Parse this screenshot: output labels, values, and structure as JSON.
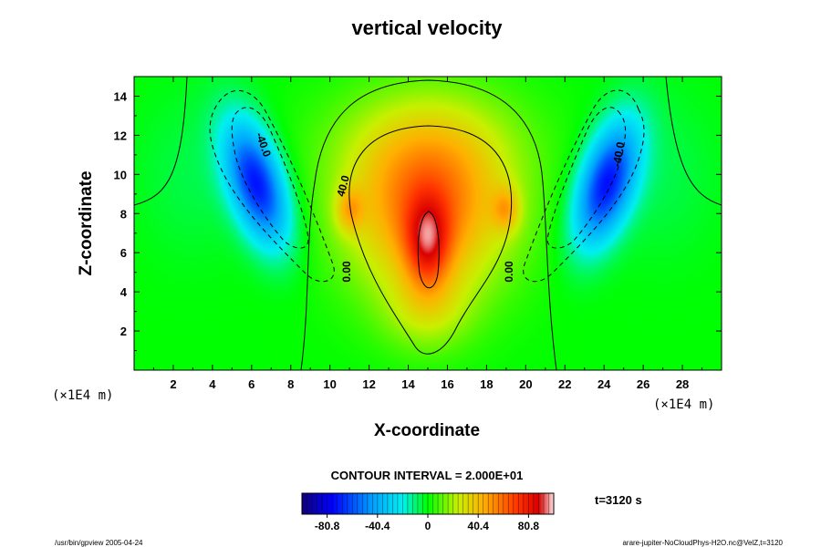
{
  "chart_data": {
    "type": "heatmap",
    "title": "vertical velocity",
    "xlabel": "X-coordinate",
    "ylabel": "Z-coordinate",
    "x_unit_note": "(×1E4 m)",
    "y_unit_note": "(×1E4 m)",
    "xlim": [
      0,
      30
    ],
    "ylim": [
      0,
      15
    ],
    "x_ticks": [
      "2",
      "4",
      "6",
      "8",
      "10",
      "12",
      "14",
      "16",
      "18",
      "20",
      "22",
      "24",
      "26",
      "28"
    ],
    "y_ticks": [
      "2",
      "4",
      "6",
      "8",
      "10",
      "12",
      "14"
    ],
    "contour_interval_text": "CONTOUR INTERVAL = 2.000E+01",
    "contour_labels": [
      "-40.0",
      "-40.0",
      "40.0",
      "0.00",
      "0.00"
    ],
    "colorbar": {
      "range": [
        -101,
        101
      ],
      "tick_labels": [
        "-80.8",
        "-40.4",
        "0",
        "40.4",
        "80.8"
      ]
    },
    "features": [
      {
        "kind": "updraft",
        "x": 15,
        "z": 6.5,
        "peak": 100
      },
      {
        "kind": "downdraft",
        "x": 6.5,
        "z": 9,
        "min": -70
      },
      {
        "kind": "downdraft",
        "x": 24,
        "z": 9,
        "min": -70
      }
    ],
    "grid": false,
    "legend": "colorbar-bottom"
  },
  "time_label": "t=3120 s",
  "footer": {
    "left": "/usr/bin/gpview 2005-04-24",
    "right": "arare-jupiter-NoCloudPhys-H2O.nc@VelZ,t=3120"
  },
  "colors": {
    "zero_level": "#00ff00",
    "min_level": "#10007a",
    "max_level": "#ffe0e0",
    "contour_line": "#000000"
  }
}
